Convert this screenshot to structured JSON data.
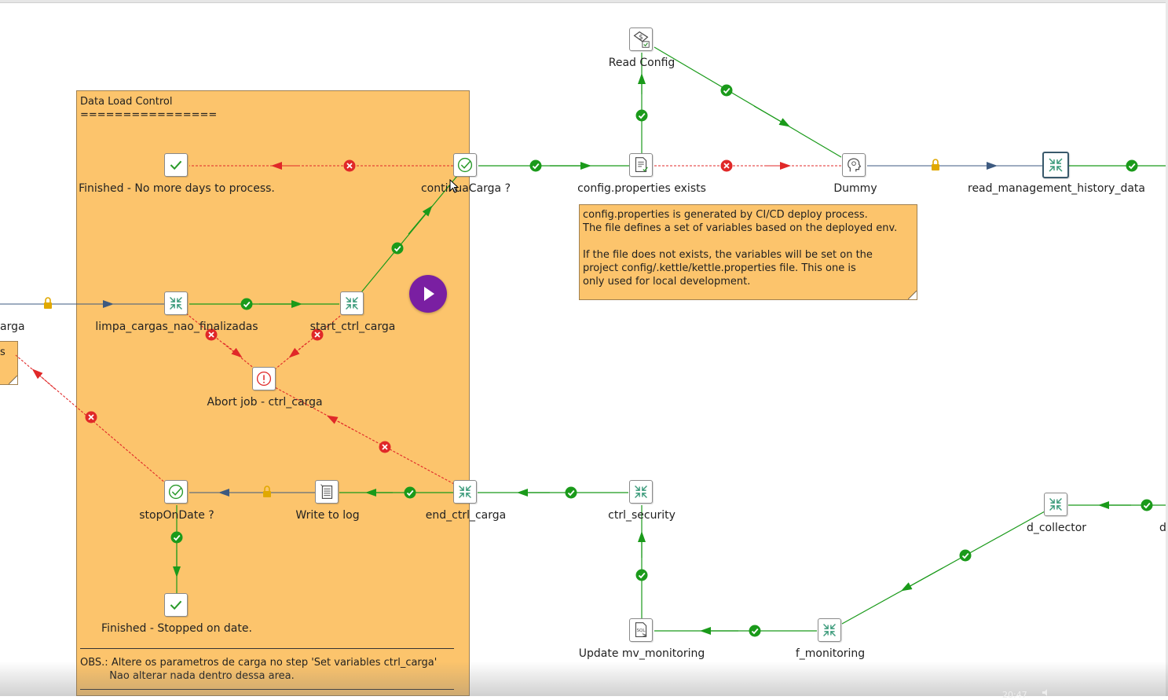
{
  "notes": {
    "data_load_control": {
      "text": "Data Load Control\n================",
      "obs": "OBS.: Altere os parametros de carga no step 'Set variables ctrl_carga'\n         Nao alterar nada dentro dessa area."
    },
    "config_info": {
      "text": "config.properties is generated by CI/CD deploy process.\nThe file defines a set of variables based on the deployed env.\n\nIf the file does not exists, the variables will be set on the\nproject config/.kettle/kettle.properties file. This one is\nonly used for local development."
    },
    "left_partial": {
      "text": "s"
    }
  },
  "steps": {
    "read_config": "Read Config",
    "finished_no_more_days": "Finished - No more days to process.",
    "continua_carga": "continuaCarga ?",
    "config_properties_exists": "config.properties exists",
    "dummy": "Dummy",
    "read_management_history_data": "read_management_history_data",
    "carga_partial": "arga",
    "limpa_cargas": "limpa_cargas_nao_finalizadas",
    "start_ctrl_carga": "start_ctrl_carga",
    "abort_job": "Abort job - ctrl_carga",
    "stop_on_date": "stopOnDate ?",
    "write_to_log": "Write to log",
    "end_ctrl_carga": "end_ctrl_carga",
    "ctrl_security": "ctrl_security",
    "d_collector": "d_collector",
    "d_partial": "d",
    "finished_stopped": "Finished - Stopped on date.",
    "update_mv_monitoring": "Update mv_monitoring",
    "f_monitoring": "f_monitoring"
  },
  "taskbar": {
    "clock": "20:47"
  },
  "colors": {
    "note_fill": "#fcc46c",
    "hop_success": "#1a9a1a",
    "hop_error": "#e02828",
    "hop_unconditional": "#3d5a80",
    "lock": "#e0a800",
    "run_button": "#7a1fa2"
  },
  "icons": {
    "run": "play-icon",
    "success": "check-circle-icon",
    "error": "x-circle-icon",
    "unconditional": "lock-icon"
  }
}
